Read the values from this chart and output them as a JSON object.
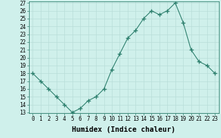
{
  "xlabel": "Humidex (Indice chaleur)",
  "x_values": [
    0,
    1,
    2,
    3,
    4,
    5,
    6,
    7,
    8,
    9,
    10,
    11,
    12,
    13,
    14,
    15,
    16,
    17,
    18,
    19,
    20,
    21,
    22,
    23
  ],
  "y_values": [
    18,
    17,
    16,
    15,
    14,
    13,
    13.5,
    14.5,
    15,
    16,
    18.5,
    20.5,
    22.5,
    23.5,
    25,
    26,
    25.5,
    26,
    27,
    24.5,
    21,
    19.5,
    19,
    18
  ],
  "line_color": "#2a7d6b",
  "marker": "+",
  "marker_size": 4,
  "bg_color": "#cff0eb",
  "grid_color": "#b8ddd8",
  "ylim": [
    13,
    27
  ],
  "yticks": [
    13,
    14,
    15,
    16,
    17,
    18,
    19,
    20,
    21,
    22,
    23,
    24,
    25,
    26,
    27
  ],
  "xticks": [
    0,
    1,
    2,
    3,
    4,
    5,
    6,
    7,
    8,
    9,
    10,
    11,
    12,
    13,
    14,
    15,
    16,
    17,
    18,
    19,
    20,
    21,
    22,
    23
  ],
  "tick_fontsize": 5.5,
  "xlabel_fontsize": 7.5,
  "spine_color": "#2a7d6b"
}
